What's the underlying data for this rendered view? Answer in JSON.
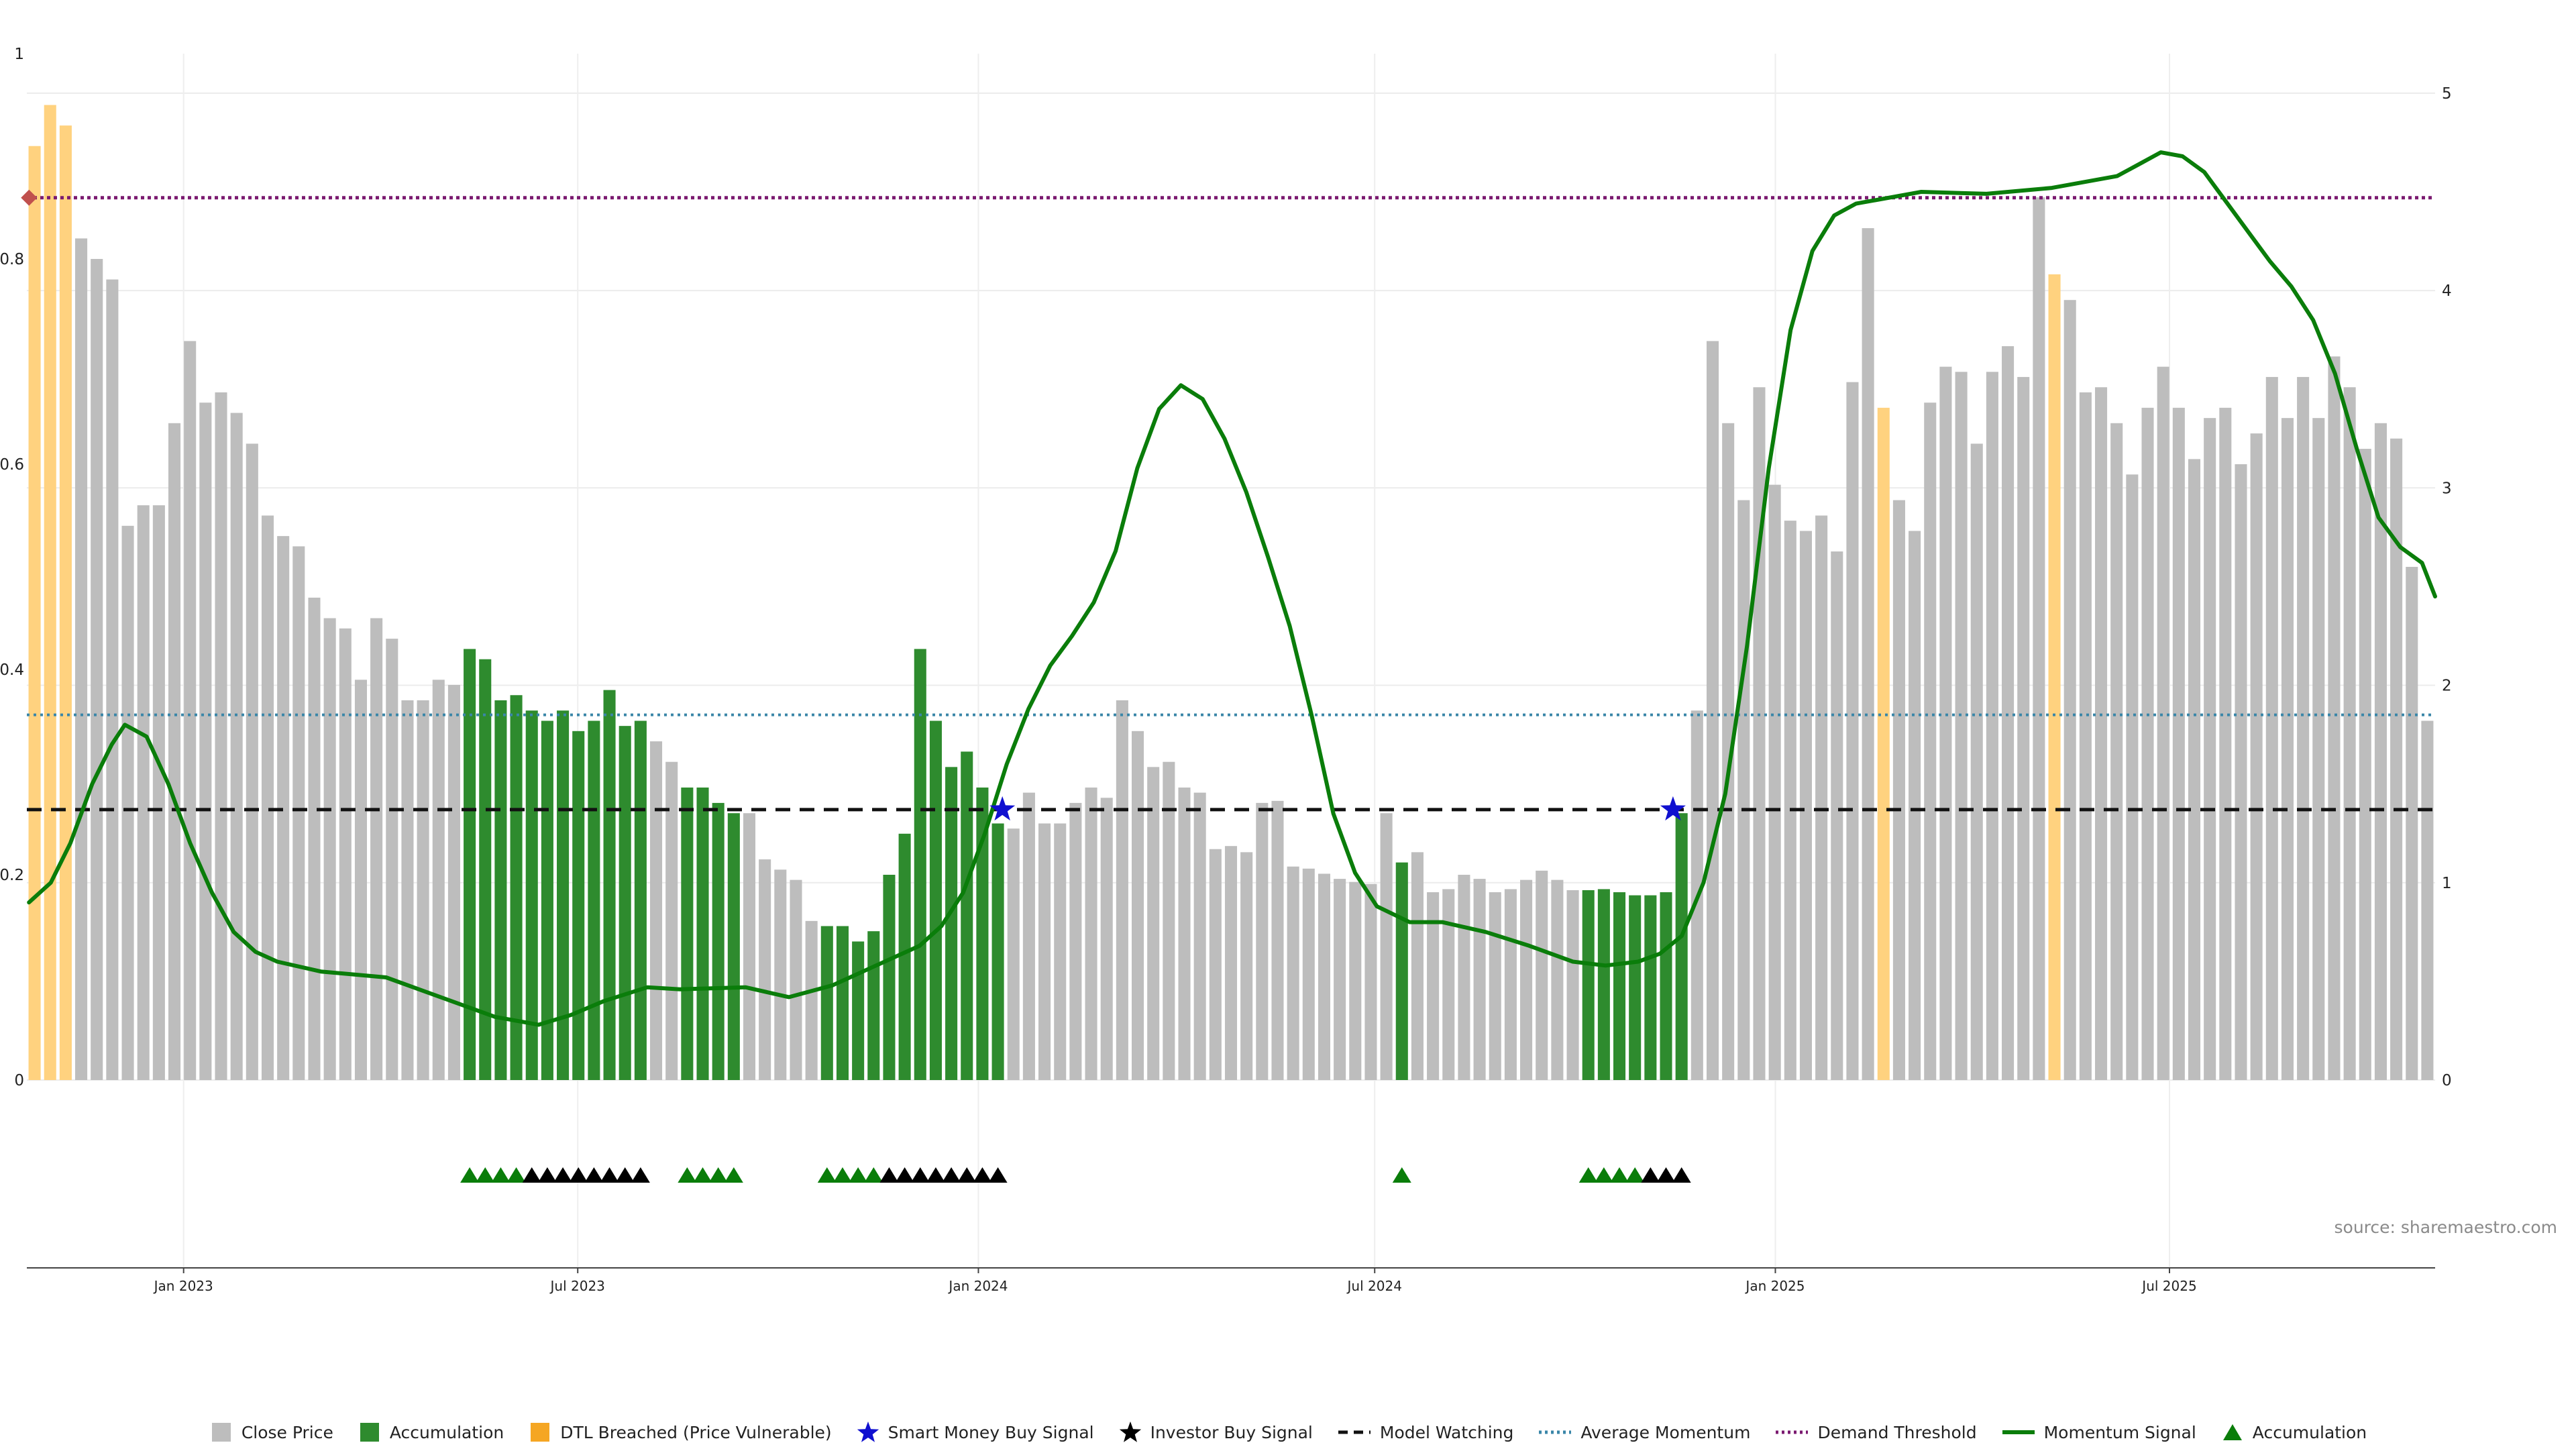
{
  "chart_data": {
    "type": "bar",
    "source_text": "source: sharemaestro.com",
    "left_axis": {
      "ylim": [
        0,
        1
      ],
      "ticks": [
        "0",
        "0.2",
        "0.4",
        "0.6",
        "0.8",
        "1"
      ],
      "tick_values": [
        0,
        0.2,
        0.4,
        0.6,
        0.8,
        1
      ]
    },
    "right_axis": {
      "ylim": [
        0,
        5.2
      ],
      "ticks": [
        "0",
        "1",
        "2",
        "3",
        "4",
        "5"
      ],
      "tick_values": [
        0,
        1,
        2,
        3,
        4,
        5
      ]
    },
    "x_axis": {
      "start": "2022-10-21",
      "end": "2025-10-31",
      "ticks": [
        {
          "date": "2023-01-01",
          "label": "Jan 2023"
        },
        {
          "date": "2023-07-01",
          "label": "Jul 2023"
        },
        {
          "date": "2024-01-01",
          "label": "Jan 2024"
        },
        {
          "date": "2024-07-01",
          "label": "Jul 2024"
        },
        {
          "date": "2025-01-01",
          "label": "Jan 2025"
        },
        {
          "date": "2025-07-01",
          "label": "Jul 2025"
        }
      ]
    },
    "series": [
      {
        "name": "Close Price",
        "type": "bar",
        "start_date": "2022-10-21",
        "period": "weekly",
        "values": [
          0.91,
          0.95,
          0.93,
          0.82,
          0.8,
          0.78,
          0.54,
          0.56,
          0.56,
          0.64,
          0.72,
          0.66,
          0.67,
          0.65,
          0.62,
          0.55,
          0.53,
          0.52,
          0.47,
          0.45,
          0.44,
          0.39,
          0.45,
          0.43,
          0.37,
          0.37,
          0.39,
          0.385,
          0.42,
          0.41,
          0.37,
          0.375,
          0.36,
          0.35,
          0.36,
          0.34,
          0.35,
          0.38,
          0.345,
          0.35,
          0.33,
          0.31,
          0.285,
          0.285,
          0.27,
          0.26,
          0.26,
          0.215,
          0.205,
          0.195,
          0.155,
          0.15,
          0.15,
          0.135,
          0.145,
          0.2,
          0.24,
          0.42,
          0.35,
          0.305,
          0.32,
          0.285,
          0.25,
          0.245,
          0.28,
          0.25,
          0.25,
          0.27,
          0.285,
          0.275,
          0.37,
          0.34,
          0.305,
          0.31,
          0.285,
          0.28,
          0.225,
          0.228,
          0.222,
          0.27,
          0.272,
          0.208,
          0.206,
          0.201,
          0.196,
          0.193,
          0.191,
          0.26,
          0.212,
          0.222,
          0.183,
          0.186,
          0.2,
          0.196,
          0.183,
          0.186,
          0.195,
          0.204,
          0.195,
          0.185,
          0.185,
          0.186,
          0.183,
          0.18,
          0.18,
          0.183,
          0.26,
          0.36,
          0.72,
          0.64,
          0.565,
          0.675,
          0.58,
          0.545,
          0.535,
          0.55,
          0.515,
          0.68,
          0.83,
          0.655,
          0.565,
          0.535,
          0.66,
          0.695,
          0.69,
          0.62,
          0.69,
          0.715,
          0.685,
          0.86,
          0.785,
          0.76,
          0.67,
          0.675,
          0.64,
          0.59,
          0.655,
          0.695,
          0.655,
          0.605,
          0.645,
          0.655,
          0.6,
          0.63,
          0.685,
          0.645,
          0.685,
          0.645,
          0.705,
          0.675,
          0.615,
          0.64,
          0.625,
          0.5,
          0.35
        ],
        "color": "#bdbdbd"
      },
      {
        "name": "Accumulation",
        "type": "bar",
        "color": "#2e8b2e",
        "bar_indices": [
          28,
          29,
          30,
          31,
          32,
          33,
          34,
          35,
          36,
          37,
          38,
          39,
          42,
          43,
          44,
          45,
          51,
          52,
          53,
          54,
          55,
          56,
          57,
          58,
          59,
          60,
          61,
          62,
          88,
          100,
          101,
          102,
          103,
          104,
          105,
          106
        ]
      },
      {
        "name": "DTL Breached (Price Vulnerable)",
        "type": "bar",
        "color": "#ffd27f",
        "bar_indices": [
          0,
          1,
          2,
          119,
          130
        ]
      },
      {
        "name": "Momentum Signal",
        "type": "line",
        "axis": "right",
        "color": "#0a7d0a",
        "points": [
          [
            "2022-10-22",
            0.9
          ],
          [
            "2022-11-01",
            1.0
          ],
          [
            "2022-11-10",
            1.2
          ],
          [
            "2022-11-20",
            1.5
          ],
          [
            "2022-11-29",
            1.7
          ],
          [
            "2022-12-05",
            1.8
          ],
          [
            "2022-12-15",
            1.74
          ],
          [
            "2022-12-25",
            1.5
          ],
          [
            "2023-01-04",
            1.2
          ],
          [
            "2023-01-14",
            0.95
          ],
          [
            "2023-01-24",
            0.75
          ],
          [
            "2023-02-03",
            0.65
          ],
          [
            "2023-02-13",
            0.6
          ],
          [
            "2023-03-05",
            0.55
          ],
          [
            "2023-04-04",
            0.52
          ],
          [
            "2023-05-04",
            0.4
          ],
          [
            "2023-05-24",
            0.32
          ],
          [
            "2023-06-13",
            0.28
          ],
          [
            "2023-06-28",
            0.33
          ],
          [
            "2023-07-13",
            0.4
          ],
          [
            "2023-08-02",
            0.47
          ],
          [
            "2023-08-17",
            0.46
          ],
          [
            "2023-09-16",
            0.47
          ],
          [
            "2023-10-06",
            0.42
          ],
          [
            "2023-10-26",
            0.48
          ],
          [
            "2023-11-15",
            0.58
          ],
          [
            "2023-12-05",
            0.68
          ],
          [
            "2023-12-15",
            0.78
          ],
          [
            "2023-12-25",
            0.95
          ],
          [
            "2024-01-04",
            1.25
          ],
          [
            "2024-01-14",
            1.6
          ],
          [
            "2024-01-24",
            1.88
          ],
          [
            "2024-02-03",
            2.1
          ],
          [
            "2024-02-13",
            2.25
          ],
          [
            "2024-02-23",
            2.42
          ],
          [
            "2024-03-04",
            2.68
          ],
          [
            "2024-03-14",
            3.1
          ],
          [
            "2024-03-24",
            3.4
          ],
          [
            "2024-04-03",
            3.52
          ],
          [
            "2024-04-13",
            3.45
          ],
          [
            "2024-04-23",
            3.25
          ],
          [
            "2024-05-03",
            2.98
          ],
          [
            "2024-05-13",
            2.65
          ],
          [
            "2024-05-23",
            2.3
          ],
          [
            "2024-06-02",
            1.85
          ],
          [
            "2024-06-12",
            1.35
          ],
          [
            "2024-06-22",
            1.05
          ],
          [
            "2024-07-02",
            0.88
          ],
          [
            "2024-07-17",
            0.8
          ],
          [
            "2024-08-01",
            0.8
          ],
          [
            "2024-08-21",
            0.75
          ],
          [
            "2024-09-10",
            0.68
          ],
          [
            "2024-09-30",
            0.6
          ],
          [
            "2024-10-15",
            0.58
          ],
          [
            "2024-10-30",
            0.6
          ],
          [
            "2024-11-09",
            0.64
          ],
          [
            "2024-11-19",
            0.73
          ],
          [
            "2024-11-29",
            1.0
          ],
          [
            "2024-12-09",
            1.45
          ],
          [
            "2024-12-19",
            2.2
          ],
          [
            "2024-12-29",
            3.1
          ],
          [
            "2025-01-08",
            3.8
          ],
          [
            "2025-01-18",
            4.2
          ],
          [
            "2025-01-28",
            4.38
          ],
          [
            "2025-02-07",
            4.44
          ],
          [
            "2025-03-09",
            4.5
          ],
          [
            "2025-04-08",
            4.49
          ],
          [
            "2025-05-08",
            4.52
          ],
          [
            "2025-06-07",
            4.58
          ],
          [
            "2025-06-17",
            4.64
          ],
          [
            "2025-06-27",
            4.7
          ],
          [
            "2025-07-07",
            4.68
          ],
          [
            "2025-07-17",
            4.6
          ],
          [
            "2025-07-27",
            4.45
          ],
          [
            "2025-08-06",
            4.3
          ],
          [
            "2025-08-16",
            4.15
          ],
          [
            "2025-08-26",
            4.02
          ],
          [
            "2025-09-05",
            3.85
          ],
          [
            "2025-09-15",
            3.58
          ],
          [
            "2025-09-25",
            3.2
          ],
          [
            "2025-10-05",
            2.85
          ],
          [
            "2025-10-15",
            2.7
          ],
          [
            "2025-10-25",
            2.62
          ],
          [
            "2025-10-31",
            2.45
          ]
        ]
      },
      {
        "name": "Average Momentum",
        "type": "hline",
        "axis": "right",
        "color": "#3a86a8",
        "value": 1.85
      },
      {
        "name": "Demand Threshold",
        "type": "hline",
        "axis": "right",
        "color": "#7b1a70",
        "value": 4.47
      },
      {
        "name": "Model Watching",
        "type": "hline",
        "axis": "right",
        "color": "#111111",
        "value": 1.37
      }
    ],
    "markers": {
      "smart_money_buy_signal": {
        "name": "Smart Money Buy Signal",
        "color": "#1010d0",
        "dates": [
          "2024-01-12",
          "2024-11-15"
        ]
      },
      "demand_diamond": {
        "color": "#c0504d",
        "date": "2022-10-22"
      },
      "accumulation_triangles": {
        "name": "Accumulation",
        "color": "#0a7d0a",
        "bar_indices": [
          28,
          29,
          30,
          31,
          42,
          43,
          44,
          45,
          51,
          52,
          53,
          54,
          88,
          100,
          101,
          102,
          103
        ]
      },
      "investor_buy_signals": {
        "name": "Investor Buy Signal",
        "color": "#000000",
        "bar_indices": [
          32,
          33,
          34,
          35,
          36,
          37,
          38,
          39,
          55,
          56,
          57,
          58,
          59,
          60,
          61,
          62,
          104,
          105,
          106
        ]
      }
    },
    "legend": {
      "position": "bottom",
      "items": [
        {
          "label": "Close Price",
          "kind": "square",
          "color": "#bdbdbd"
        },
        {
          "label": "Accumulation",
          "kind": "square",
          "color": "#2e8b2e"
        },
        {
          "label": "DTL Breached (Price Vulnerable)",
          "kind": "square",
          "color": "#f5a623"
        },
        {
          "label": "Smart Money Buy Signal",
          "kind": "star",
          "color": "#1010d0"
        },
        {
          "label": "Investor Buy Signal",
          "kind": "star",
          "color": "#000000"
        },
        {
          "label": "Model Watching",
          "kind": "dash",
          "color": "#111111"
        },
        {
          "label": "Average Momentum",
          "kind": "dot",
          "color": "#3a86a8"
        },
        {
          "label": "Demand Threshold",
          "kind": "dot",
          "color": "#7b1a70"
        },
        {
          "label": "Momentum Signal",
          "kind": "line",
          "color": "#0a7d0a"
        },
        {
          "label": "Accumulation",
          "kind": "triangle",
          "color": "#0a7d0a"
        }
      ]
    }
  }
}
